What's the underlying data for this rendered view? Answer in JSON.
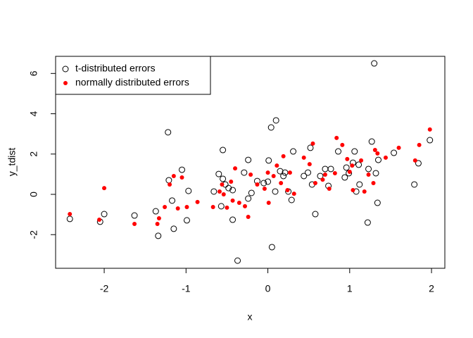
{
  "chart_data": {
    "type": "scatter",
    "xlabel": "x",
    "ylabel": "y_tdist",
    "xlim": [
      -2.594,
      2.163
    ],
    "ylim": [
      -3.67,
      6.85
    ],
    "xticks": [
      -2,
      -1,
      0,
      1,
      2
    ],
    "yticks": [
      -2,
      0,
      2,
      4,
      6
    ],
    "legend": "topleft",
    "series": [
      {
        "name": "t-distributed errors",
        "color": "#000000",
        "marker": "open",
        "x": [
          -2.42,
          -2.05,
          -2.0,
          -1.63,
          -1.37,
          -1.34,
          -1.22,
          -1.21,
          -1.17,
          -1.15,
          -1.05,
          -0.99,
          -0.97,
          -0.55,
          -0.6,
          -0.57,
          -0.52,
          -0.48,
          -0.43,
          -0.43,
          -0.37,
          -0.29,
          -0.24,
          -0.2,
          -0.13,
          -0.05,
          0.0,
          0.01,
          0.04,
          0.05,
          0.09,
          0.1,
          0.15,
          0.19,
          0.21,
          0.25,
          0.29,
          0.31,
          0.44,
          0.49,
          0.52,
          0.54,
          0.58,
          0.64,
          0.7,
          0.74,
          0.77,
          0.86,
          0.94,
          0.96,
          0.99,
          1.04,
          1.06,
          1.08,
          1.12,
          1.22,
          1.23,
          1.27,
          1.3,
          1.32,
          1.34,
          1.35,
          1.54,
          1.79,
          1.84,
          1.98,
          1.11,
          -0.55,
          -0.66,
          -0.24
        ],
        "values": [
          -1.22,
          -1.36,
          -0.98,
          -1.05,
          -0.84,
          -2.06,
          3.08,
          0.7,
          -0.31,
          -1.71,
          1.22,
          -1.29,
          0.17,
          2.2,
          1.01,
          -0.59,
          0.49,
          0.31,
          0.21,
          -1.26,
          -3.29,
          1.08,
          1.71,
          0.07,
          0.66,
          0.56,
          0.63,
          1.68,
          3.32,
          -2.62,
          0.14,
          3.67,
          1.15,
          0.91,
          1.08,
          0.14,
          -0.28,
          2.13,
          0.91,
          1.08,
          2.31,
          0.49,
          -0.98,
          0.91,
          1.26,
          0.42,
          1.26,
          2.13,
          0.84,
          1.33,
          1.05,
          1.57,
          2.13,
          0.14,
          0.49,
          -1.4,
          1.26,
          2.62,
          6.5,
          1.05,
          -0.42,
          1.71,
          2.06,
          0.49,
          1.54,
          2.69,
          1.47,
          0.77,
          0.14,
          -0.21
        ]
      },
      {
        "name": "normally distributed errors",
        "color": "#ff0000",
        "marker": "filled",
        "x": [
          -2.42,
          -2.06,
          -2.0,
          -1.63,
          -1.35,
          -1.33,
          -1.26,
          -1.15,
          -1.2,
          -1.1,
          -1.05,
          -0.99,
          -0.86,
          -0.67,
          -0.59,
          -0.56,
          -0.54,
          -0.5,
          -0.45,
          -0.43,
          -0.4,
          -0.35,
          -0.28,
          -0.24,
          -0.21,
          -0.13,
          -0.04,
          0.0,
          0.01,
          0.07,
          0.11,
          0.16,
          0.19,
          0.24,
          0.27,
          0.32,
          0.44,
          0.51,
          0.55,
          0.67,
          0.75,
          0.82,
          0.84,
          0.91,
          0.97,
          1.0,
          1.03,
          1.04,
          1.14,
          1.18,
          1.23,
          1.29,
          1.31,
          1.44,
          1.6,
          1.8,
          1.85,
          1.98,
          1.34,
          0.58,
          0.7
        ],
        "values": [
          -0.98,
          -1.26,
          0.31,
          -1.47,
          -1.47,
          -1.19,
          -0.63,
          0.91,
          0.49,
          -0.7,
          0.84,
          -0.63,
          -0.38,
          -0.63,
          0.14,
          0.49,
          0.0,
          -0.66,
          0.63,
          -0.31,
          1.29,
          -0.42,
          -0.59,
          -1.12,
          0.98,
          0.49,
          0.28,
          1.08,
          -0.42,
          0.91,
          1.43,
          0.56,
          1.89,
          0.21,
          1.08,
          0.03,
          1.82,
          1.5,
          2.52,
          0.73,
          0.28,
          1.05,
          2.8,
          2.45,
          1.75,
          1.12,
          1.43,
          0.21,
          1.68,
          0.14,
          0.98,
          0.56,
          2.2,
          1.82,
          2.31,
          1.68,
          2.45,
          3.22,
          2.03,
          0.56,
          0.98
        ]
      }
    ]
  }
}
